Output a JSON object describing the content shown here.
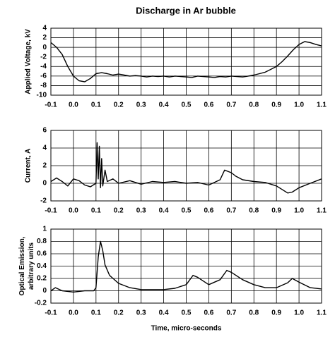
{
  "chart_data": [
    {
      "type": "line",
      "title": "Discharge in Ar bubble",
      "ylabel": "Applied Voltage, kV",
      "color": "#000000",
      "grid": true,
      "x": [
        -0.1,
        -0.075,
        -0.05,
        -0.025,
        0,
        0.025,
        0.05,
        0.075,
        0.1,
        0.125,
        0.15,
        0.175,
        0.2,
        0.225,
        0.25,
        0.275,
        0.3,
        0.325,
        0.35,
        0.375,
        0.4,
        0.425,
        0.45,
        0.475,
        0.5,
        0.525,
        0.55,
        0.575,
        0.6,
        0.625,
        0.65,
        0.675,
        0.7,
        0.725,
        0.75,
        0.775,
        0.8,
        0.825,
        0.85,
        0.875,
        0.9,
        0.925,
        0.95,
        0.975,
        1,
        1.025,
        1.05,
        1.075,
        1.1
      ],
      "values": [
        1,
        0,
        -1.5,
        -4,
        -6,
        -7,
        -7.2,
        -6.5,
        -5.5,
        -5.3,
        -5.5,
        -5.8,
        -5.6,
        -5.8,
        -6,
        -5.9,
        -6,
        -6.2,
        -6,
        -6.1,
        -6,
        -6.2,
        -6,
        -6.1,
        -6.2,
        -6.3,
        -6,
        -6.1,
        -6.2,
        -6.3,
        -6.1,
        -6.2,
        -6,
        -6.1,
        -6.2,
        -6,
        -5.8,
        -5.5,
        -5.2,
        -4.6,
        -4,
        -3,
        -1.8,
        -0.5,
        0.6,
        1.2,
        1,
        0.6,
        0.3
      ],
      "xlim": [
        -0.1,
        1.1
      ],
      "xticks": [
        -0.1,
        {
          "value": 0,
          "label": "0.0"
        },
        0.1,
        0.2,
        0.3,
        0.4,
        0.5,
        0.6,
        0.7,
        0.8,
        0.9,
        {
          "value": 1,
          "label": "1.0"
        },
        1.1
      ],
      "ylim": [
        -10,
        4
      ],
      "yticks": [
        4,
        2,
        0,
        -2,
        -4,
        -6,
        -8,
        -10
      ]
    },
    {
      "type": "line",
      "ylabel": "Current, A",
      "color": "#000000",
      "grid": true,
      "x": [
        -0.1,
        -0.075,
        -0.05,
        -0.025,
        0,
        0.025,
        0.05,
        0.075,
        0.1,
        0.105,
        0.11,
        0.115,
        0.12,
        0.125,
        0.13,
        0.14,
        0.15,
        0.175,
        0.2,
        0.25,
        0.3,
        0.35,
        0.4,
        0.45,
        0.5,
        0.55,
        0.6,
        0.65,
        0.67,
        0.7,
        0.72,
        0.75,
        0.8,
        0.85,
        0.9,
        0.95,
        0.97,
        1,
        1.05,
        1.1
      ],
      "values": [
        0.2,
        0.6,
        0.2,
        -0.3,
        0.5,
        0.3,
        -0.2,
        -0.4,
        0,
        4.6,
        0.5,
        4.2,
        -0.5,
        2.8,
        -0.3,
        1.5,
        0.2,
        0.5,
        0,
        0.3,
        -0.1,
        0.2,
        0.1,
        0.2,
        0,
        0.1,
        -0.2,
        0.4,
        1.5,
        1.2,
        0.8,
        0.4,
        0.2,
        0.1,
        -0.3,
        -1.1,
        -1,
        -0.5,
        0,
        0.5
      ],
      "xlim": [
        -0.1,
        1.1
      ],
      "xticks": [
        -0.1,
        {
          "value": 0,
          "label": "0.0"
        },
        0.1,
        0.2,
        0.3,
        0.4,
        0.5,
        0.6,
        0.7,
        0.8,
        0.9,
        {
          "value": 1,
          "label": "1.0"
        },
        1.1
      ],
      "ylim": [
        -2,
        6
      ],
      "yticks": [
        6,
        4,
        2,
        0,
        -2
      ]
    },
    {
      "type": "line",
      "ylabel": [
        "Optical Emission,",
        "arbitrary units"
      ],
      "xlabel": "Time, micro-seconds",
      "color": "#000000",
      "grid": true,
      "x": [
        -0.1,
        -0.08,
        -0.05,
        0,
        0.05,
        0.09,
        0.1,
        0.11,
        0.12,
        0.13,
        0.14,
        0.16,
        0.2,
        0.25,
        0.3,
        0.4,
        0.45,
        0.5,
        0.53,
        0.55,
        0.6,
        0.65,
        0.68,
        0.7,
        0.75,
        0.8,
        0.85,
        0.9,
        0.95,
        0.97,
        1,
        1.05,
        1.1
      ],
      "values": [
        0,
        0.05,
        0,
        -0.02,
        0,
        0,
        0.05,
        0.55,
        0.8,
        0.65,
        0.42,
        0.25,
        0.12,
        0.05,
        0.02,
        0.02,
        0.04,
        0.1,
        0.25,
        0.22,
        0.1,
        0.18,
        0.33,
        0.3,
        0.18,
        0.1,
        0.05,
        0.05,
        0.13,
        0.2,
        0.14,
        0.05,
        0.03
      ],
      "xlim": [
        -0.1,
        1.1
      ],
      "xticks": [
        -0.1,
        {
          "value": 0,
          "label": "0.0"
        },
        0.1,
        0.2,
        0.3,
        0.4,
        0.5,
        0.6,
        0.7,
        0.8,
        0.9,
        {
          "value": 1,
          "label": "1.0"
        },
        1.1
      ],
      "ylim": [
        -0.2,
        1
      ],
      "yticks": [
        1,
        0.8,
        0.6,
        0.4,
        0.2,
        0,
        -0.2
      ]
    }
  ]
}
